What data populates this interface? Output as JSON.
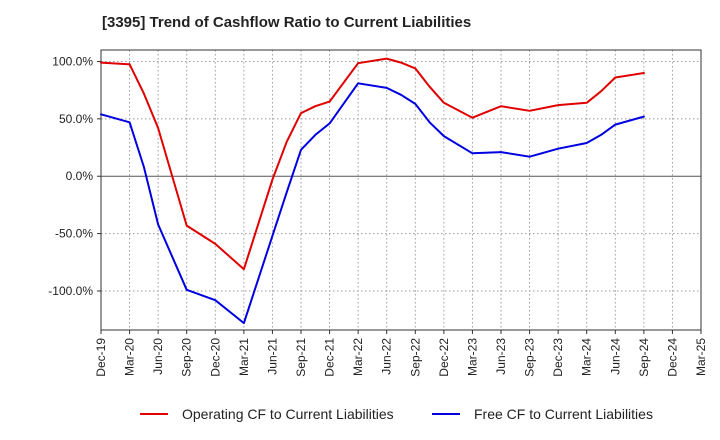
{
  "chart_data": {
    "type": "line",
    "title": "[3395]  Trend of Cashflow Ratio to Current Liabilities",
    "x_ticks": [
      "Dec-19",
      "Mar-20",
      "Jun-20",
      "Sep-20",
      "Dec-20",
      "Mar-21",
      "Jun-21",
      "Sep-21",
      "Dec-21",
      "Mar-22",
      "Jun-22",
      "Sep-22",
      "Dec-22",
      "Mar-23",
      "Jun-23",
      "Sep-23",
      "Dec-23",
      "Mar-24",
      "Jun-24",
      "Sep-24",
      "Dec-24",
      "Mar-25"
    ],
    "y_ticks": [
      100,
      50,
      0,
      -50,
      -100
    ],
    "y_tick_labels": [
      "100.0%",
      "50.0%",
      "0.0%",
      "-50.0%",
      "-100.0%"
    ],
    "ylim": [
      -134,
      110
    ],
    "grid": true,
    "legend_position": "bottom",
    "series": [
      {
        "name": "Operating CF to Current Liabilities",
        "color": "#e00000",
        "points": [
          [
            0,
            99
          ],
          [
            1,
            97.5
          ],
          [
            1.5,
            72
          ],
          [
            2,
            42
          ],
          [
            3,
            -43
          ],
          [
            4,
            -59
          ],
          [
            5,
            -81
          ],
          [
            6,
            -3
          ],
          [
            6.5,
            30
          ],
          [
            7,
            55
          ],
          [
            7.5,
            61
          ],
          [
            8,
            65
          ],
          [
            9,
            98.5
          ],
          [
            10,
            102.5
          ],
          [
            10.5,
            99
          ],
          [
            11,
            94
          ],
          [
            11.5,
            78
          ],
          [
            12,
            64
          ],
          [
            13,
            51
          ],
          [
            14,
            61
          ],
          [
            15,
            57
          ],
          [
            16,
            62
          ],
          [
            17,
            64
          ],
          [
            17.5,
            74
          ],
          [
            18,
            86
          ],
          [
            19,
            90
          ]
        ]
      },
      {
        "name": "Free CF to Current Liabilities",
        "color": "#0000e0",
        "points": [
          [
            0,
            54
          ],
          [
            1,
            47
          ],
          [
            1.5,
            8
          ],
          [
            2,
            -42
          ],
          [
            3,
            -99
          ],
          [
            4,
            -108
          ],
          [
            5,
            -128
          ],
          [
            6,
            -52
          ],
          [
            6.5,
            -14
          ],
          [
            7,
            23
          ],
          [
            7.5,
            36
          ],
          [
            8,
            46
          ],
          [
            9,
            81
          ],
          [
            10,
            77
          ],
          [
            10.5,
            71
          ],
          [
            11,
            63
          ],
          [
            11.5,
            47
          ],
          [
            12,
            35
          ],
          [
            13,
            20
          ],
          [
            14,
            21
          ],
          [
            15,
            17
          ],
          [
            16,
            24
          ],
          [
            17,
            29
          ],
          [
            17.5,
            36
          ],
          [
            18,
            45
          ],
          [
            19,
            52
          ]
        ]
      }
    ]
  }
}
